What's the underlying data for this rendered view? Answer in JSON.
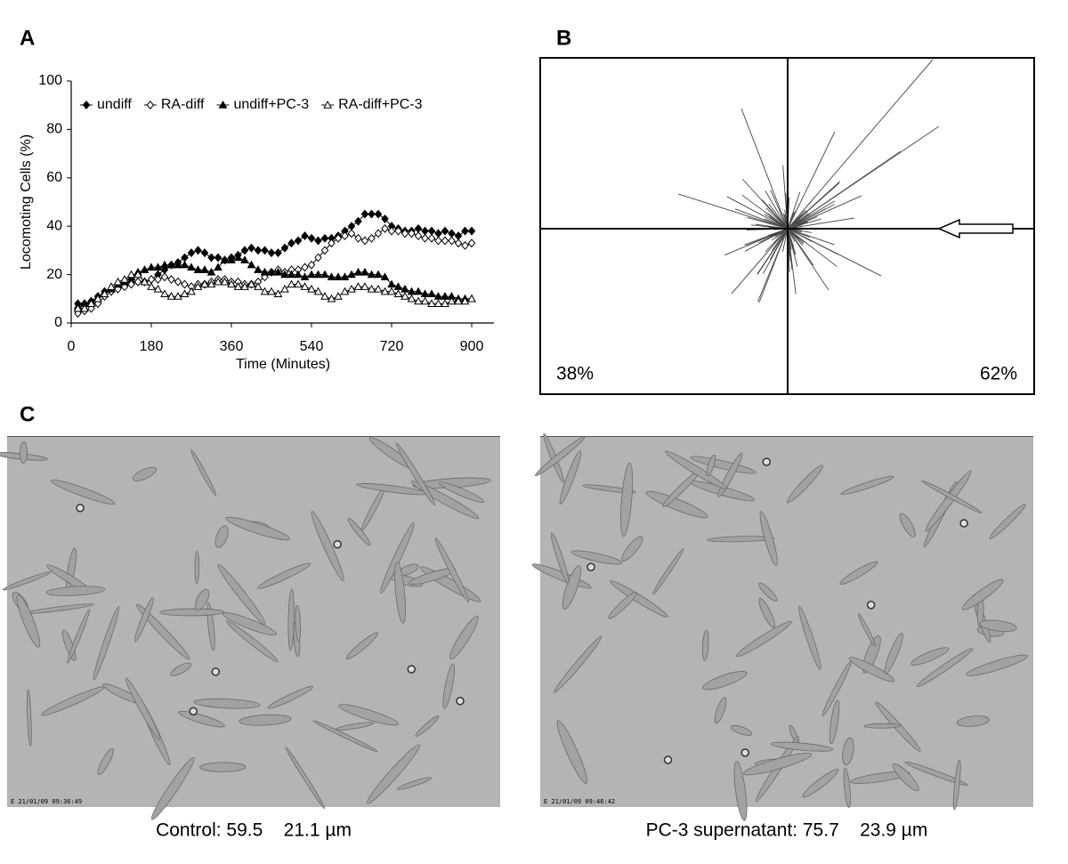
{
  "panels": {
    "a": "A",
    "b": "B",
    "c": "C"
  },
  "chart_data": {
    "type": "line",
    "x_label": "Time (Minutes)",
    "y_label": "Locomoting Cells (%)",
    "x": [
      15,
      30,
      45,
      60,
      75,
      90,
      105,
      120,
      135,
      150,
      165,
      180,
      195,
      210,
      225,
      240,
      255,
      270,
      285,
      300,
      315,
      330,
      345,
      360,
      375,
      390,
      405,
      420,
      435,
      450,
      465,
      480,
      495,
      510,
      525,
      540,
      555,
      570,
      585,
      600,
      615,
      630,
      645,
      660,
      675,
      690,
      705,
      720,
      735,
      750,
      765,
      780,
      795,
      810,
      825,
      840,
      855,
      870,
      885,
      900
    ],
    "series": [
      {
        "name": "undiff",
        "color": "#000000",
        "marker": "diamond-filled",
        "values": [
          8,
          8,
          9,
          11,
          13,
          14,
          16,
          16,
          17,
          17,
          17,
          18,
          20,
          22,
          24,
          25,
          27,
          29,
          30,
          29,
          27,
          27,
          26,
          27,
          28,
          30,
          31,
          30,
          30,
          29,
          29,
          31,
          33,
          34,
          36,
          35,
          34,
          35,
          35,
          36,
          38,
          40,
          42,
          45,
          45,
          45,
          43,
          40,
          39,
          38,
          38,
          39,
          38,
          38,
          37,
          38,
          37,
          36,
          38,
          38
        ]
      },
      {
        "name": "RA-diff",
        "color": "#000000",
        "marker": "diamond-open",
        "values": [
          4,
          5,
          6,
          8,
          11,
          13,
          14,
          15,
          16,
          17,
          17,
          18,
          18,
          19,
          18,
          17,
          16,
          15,
          16,
          16,
          17,
          18,
          18,
          17,
          17,
          16,
          16,
          17,
          19,
          21,
          22,
          21,
          22,
          22,
          23,
          24,
          27,
          30,
          33,
          35,
          36,
          37,
          35,
          34,
          35,
          37,
          39,
          38,
          38,
          37,
          37,
          36,
          35,
          35,
          34,
          34,
          34,
          33,
          32,
          33
        ]
      },
      {
        "name": "undiff+PC-3",
        "color": "#000000",
        "marker": "triangle-filled",
        "values": [
          7,
          8,
          9,
          10,
          12,
          14,
          16,
          17,
          19,
          21,
          22,
          23,
          23,
          24,
          24,
          24,
          24,
          23,
          22,
          22,
          21,
          23,
          26,
          26,
          27,
          26,
          24,
          22,
          21,
          21,
          21,
          20,
          20,
          20,
          19,
          20,
          20,
          20,
          19,
          19,
          19,
          20,
          21,
          21,
          20,
          20,
          19,
          16,
          15,
          14,
          13,
          13,
          12,
          12,
          11,
          11,
          11,
          10,
          10,
          10
        ]
      },
      {
        "name": "RA-diff+PC-3",
        "color": "#000000",
        "marker": "triangle-open",
        "values": [
          6,
          6,
          8,
          10,
          12,
          15,
          17,
          18,
          20,
          20,
          17,
          15,
          14,
          12,
          11,
          11,
          12,
          13,
          15,
          16,
          16,
          17,
          17,
          16,
          15,
          15,
          16,
          15,
          13,
          13,
          12,
          14,
          16,
          16,
          15,
          14,
          13,
          11,
          10,
          11,
          13,
          14,
          15,
          15,
          14,
          14,
          13,
          13,
          12,
          11,
          10,
          9,
          9,
          8,
          8,
          8,
          9,
          9,
          9,
          10
        ]
      }
    ],
    "xlim": [
      0,
      950
    ],
    "xticks": [
      0,
      180,
      360,
      540,
      720,
      900
    ],
    "ylim": [
      0,
      100
    ],
    "yticks": [
      0,
      20,
      40,
      60,
      80,
      100
    ],
    "grid": false,
    "legend": "top"
  },
  "trajectory_plot": {
    "left_label": "38%",
    "right_label": "62%"
  },
  "images": [
    {
      "timestamp": "E 21/01/09 09:36:49",
      "caption": "Control: 59.5    21.1 µm"
    },
    {
      "timestamp": "E 21/01/09 09:46:42",
      "caption": "PC-3 supernatant: 75.7    23.9 µm"
    }
  ]
}
